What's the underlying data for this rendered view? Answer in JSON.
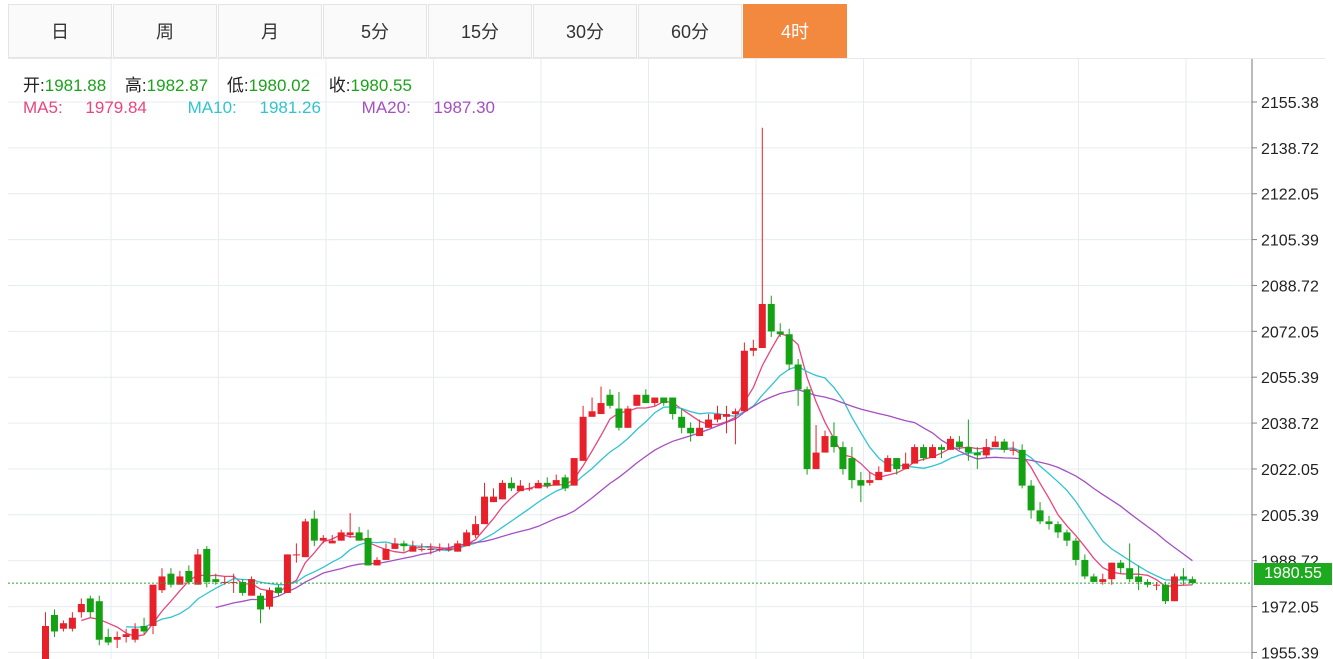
{
  "tabs": [
    {
      "label": "日",
      "active": false
    },
    {
      "label": "周",
      "active": false
    },
    {
      "label": "月",
      "active": false
    },
    {
      "label": "5分",
      "active": false
    },
    {
      "label": "15分",
      "active": false
    },
    {
      "label": "30分",
      "active": false
    },
    {
      "label": "60分",
      "active": false
    },
    {
      "label": "4时",
      "active": true
    }
  ],
  "ohlc_info": {
    "open_label": "开:",
    "open": "1981.88",
    "high_label": "高:",
    "high": "1982.87",
    "low_label": "低:",
    "low": "1980.02",
    "close_label": "收:",
    "close": "1980.55"
  },
  "ma_info": {
    "ma5_label": "MA5:",
    "ma5": "1979.84",
    "ma10_label": "MA10:",
    "ma10": "1981.26",
    "ma20_label": "MA20:",
    "ma20": "1987.30"
  },
  "current_price": "1980.55",
  "colors": {
    "up": "#e8202a",
    "down": "#14a214",
    "ma5": "#e8467c",
    "ma10": "#32c3d1",
    "ma20": "#a54fc3",
    "grid": "#e6ecf2",
    "price_line": "#28a428",
    "active_tab": "#f3883f"
  },
  "chart_data": {
    "type": "candlestick",
    "y_ticks": [
      "2155.38",
      "2138.72",
      "2122.05",
      "2105.39",
      "2088.72",
      "2072.05",
      "2055.39",
      "2038.72",
      "2022.05",
      "2005.39",
      "1988.72",
      "1972.05",
      "1955.39"
    ],
    "ylim": [
      1953,
      2171
    ],
    "current_price": 1980.55,
    "candles": [
      [
        1951,
        1965,
        1951,
        1970
      ],
      [
        1969,
        1963,
        1961,
        1971
      ],
      [
        1964,
        1966,
        1963,
        1967
      ],
      [
        1964,
        1968,
        1963,
        1970
      ],
      [
        1970,
        1973,
        1968,
        1975
      ],
      [
        1975,
        1970,
        1968,
        1976
      ],
      [
        1974,
        1960,
        1958,
        1976
      ],
      [
        1961,
        1959,
        1958,
        1964
      ],
      [
        1960,
        1961,
        1957,
        1963
      ],
      [
        1961,
        1962,
        1959,
        1964
      ],
      [
        1960,
        1964,
        1959,
        1966
      ],
      [
        1965,
        1963,
        1962,
        1968
      ],
      [
        1965,
        1980,
        1962,
        1980
      ],
      [
        1978,
        1983,
        1977,
        1986
      ],
      [
        1984,
        1980,
        1979,
        1986
      ],
      [
        1980,
        1983,
        1980,
        1985
      ],
      [
        1985,
        1981,
        1980,
        1987
      ],
      [
        1980,
        1991,
        1980,
        1993
      ],
      [
        1993,
        1981,
        1979,
        1994
      ],
      [
        1982,
        1981,
        1980,
        1984
      ],
      [
        1981,
        1981,
        1980,
        1983
      ],
      [
        1981,
        1981,
        1977,
        1984
      ],
      [
        1981,
        1977,
        1976,
        1982
      ],
      [
        1976,
        1982,
        1976,
        1983
      ],
      [
        1976,
        1971,
        1966,
        1977
      ],
      [
        1972,
        1978,
        1971,
        1979
      ],
      [
        1979,
        1977,
        1976,
        1980
      ],
      [
        1977,
        1991,
        1977,
        1991
      ],
      [
        1991,
        1991,
        1988,
        1995
      ],
      [
        1990,
        2003,
        1990,
        2004
      ],
      [
        2004,
        1996,
        1994,
        2007
      ],
      [
        1996,
        1997,
        1995,
        1998
      ],
      [
        1995,
        1996,
        1995,
        1998
      ],
      [
        1996,
        1999,
        1996,
        2000
      ],
      [
        1998,
        1999,
        1997,
        2006
      ],
      [
        1999,
        1996,
        1996,
        2001
      ],
      [
        1997,
        1987,
        1987,
        2000
      ],
      [
        1987,
        1989,
        1987,
        1990
      ],
      [
        1989,
        1993,
        1989,
        1995
      ],
      [
        1993,
        1995,
        1993,
        1997
      ],
      [
        1995,
        1994,
        1992,
        1996
      ],
      [
        1992,
        1994,
        1992,
        1996
      ],
      [
        1993,
        1993,
        1992,
        1995
      ],
      [
        1993,
        1993,
        1991,
        1995
      ],
      [
        1993,
        1993,
        1992,
        1995
      ],
      [
        1993,
        1993,
        1992,
        1995
      ],
      [
        1992,
        1995,
        1992,
        1996
      ],
      [
        1994,
        1999,
        1994,
        2000
      ],
      [
        1998,
        2002,
        1997,
        2005
      ],
      [
        2002,
        2012,
        2002,
        2017
      ],
      [
        2010,
        2012,
        2010,
        2015
      ],
      [
        2011,
        2017,
        2011,
        2018
      ],
      [
        2017,
        2015,
        2014,
        2019
      ],
      [
        2014,
        2016,
        2014,
        2018
      ],
      [
        2015,
        2015,
        2014,
        2017
      ],
      [
        2015,
        2017,
        2015,
        2018
      ],
      [
        2017,
        2016,
        2015,
        2019
      ],
      [
        2016,
        2018,
        2016,
        2020
      ],
      [
        2019,
        2015,
        2014,
        2020
      ],
      [
        2016,
        2026,
        2016,
        2026
      ],
      [
        2025,
        2041,
        2025,
        2045
      ],
      [
        2041,
        2043,
        2041,
        2048
      ],
      [
        2042,
        2046,
        2042,
        2052
      ],
      [
        2049,
        2045,
        2044,
        2051
      ],
      [
        2044,
        2037,
        2036,
        2050
      ],
      [
        2037,
        2044,
        2037,
        2045
      ],
      [
        2045,
        2049,
        2045,
        2049
      ],
      [
        2049,
        2046,
        2046,
        2051
      ],
      [
        2046,
        2048,
        2045,
        2048
      ],
      [
        2048,
        2046,
        2045,
        2048
      ],
      [
        2048,
        2042,
        2040,
        2048
      ],
      [
        2041,
        2037,
        2035,
        2044
      ],
      [
        2037,
        2035,
        2032,
        2039
      ],
      [
        2034,
        2037,
        2034,
        2040
      ],
      [
        2037,
        2040,
        2037,
        2042
      ],
      [
        2040,
        2042,
        2039,
        2045
      ],
      [
        2041,
        2042,
        2035,
        2045
      ],
      [
        2042,
        2043,
        2031,
        2044
      ],
      [
        2043,
        2065,
        2043,
        2068
      ],
      [
        2065,
        2066,
        2063,
        2069
      ],
      [
        2066,
        2082,
        2066,
        2146
      ],
      [
        2082,
        2072,
        2070,
        2085
      ],
      [
        2072,
        2071,
        2070,
        2075
      ],
      [
        2071,
        2060,
        2058,
        2073
      ],
      [
        2060,
        2051,
        2045,
        2062
      ],
      [
        2051,
        2022,
        2020,
        2052
      ],
      [
        2022,
        2028,
        2022,
        2038
      ],
      [
        2028,
        2034,
        2028,
        2036
      ],
      [
        2034,
        2030,
        2028,
        2039
      ],
      [
        2030,
        2022,
        2020,
        2032
      ],
      [
        2026,
        2018,
        2015,
        2030
      ],
      [
        2018,
        2016,
        2010,
        2021
      ],
      [
        2017,
        2018,
        2016,
        2021
      ],
      [
        2018,
        2021,
        2018,
        2023
      ],
      [
        2021,
        2026,
        2021,
        2027
      ],
      [
        2026,
        2022,
        2020,
        2026
      ],
      [
        2022,
        2024,
        2022,
        2028
      ],
      [
        2024,
        2030,
        2024,
        2031
      ],
      [
        2030,
        2026,
        2025,
        2031
      ],
      [
        2026,
        2030,
        2026,
        2031
      ],
      [
        2030,
        2029,
        2026,
        2031
      ],
      [
        2029,
        2033,
        2029,
        2034
      ],
      [
        2032,
        2030,
        2029,
        2034
      ],
      [
        2030,
        2028,
        2025,
        2040
      ],
      [
        2028,
        2027,
        2022,
        2030
      ],
      [
        2027,
        2030,
        2026,
        2033
      ],
      [
        2030,
        2032,
        2030,
        2034
      ],
      [
        2032,
        2029,
        2028,
        2033
      ],
      [
        2029,
        2029,
        2027,
        2032
      ],
      [
        2029,
        2016,
        2015,
        2031
      ],
      [
        2016,
        2007,
        2004,
        2018
      ],
      [
        2007,
        2003,
        2002,
        2010
      ],
      [
        2003,
        2002,
        2000,
        2005
      ],
      [
        2002,
        1999,
        1997,
        2003
      ],
      [
        1999,
        1996,
        1994,
        2000
      ],
      [
        1996,
        1989,
        1987,
        1997
      ],
      [
        1989,
        1983,
        1982,
        1991
      ],
      [
        1983,
        1981,
        1981,
        1984
      ],
      [
        1981,
        1982,
        1980,
        1984
      ],
      [
        1982,
        1988,
        1980,
        1988
      ],
      [
        1988,
        1986,
        1984,
        1989
      ],
      [
        1986,
        1982,
        1981,
        1995
      ],
      [
        1983,
        1981,
        1978,
        1987
      ],
      [
        1981,
        1980,
        1979,
        1982
      ],
      [
        1980,
        1980,
        1978,
        1981
      ],
      [
        1980,
        1974,
        1973,
        1981
      ],
      [
        1974,
        1983,
        1974,
        1984
      ],
      [
        1983,
        1982,
        1980,
        1986
      ],
      [
        1982,
        1980.55,
        1980,
        1983
      ]
    ]
  }
}
